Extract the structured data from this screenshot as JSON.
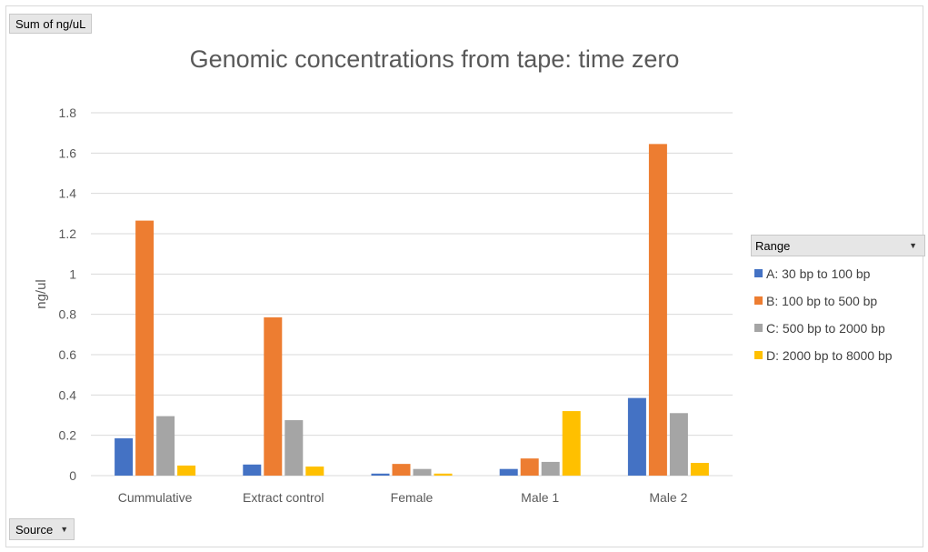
{
  "chart_data": {
    "type": "bar",
    "title": "Genomic concentrations from tape: time zero",
    "xlabel": "",
    "ylabel": "ng/ul",
    "ylim": [
      0,
      1.8
    ],
    "yticks": [
      "0",
      "0.2",
      "0.4",
      "0.6",
      "0.8",
      "1",
      "1.2",
      "1.4",
      "1.6",
      "1.8"
    ],
    "grid": true,
    "legend_position": "right",
    "categories": [
      "Cummulative",
      "Extract control",
      "Female",
      "Male 1",
      "Male 2"
    ],
    "series": [
      {
        "name": "A: 30 bp to 100 bp",
        "color": "#4472c4",
        "values": [
          0.185,
          0.055,
          0.01,
          0.033,
          0.385
        ]
      },
      {
        "name": "B: 100 bp to 500 bp",
        "color": "#ed7d31",
        "values": [
          1.265,
          0.785,
          0.058,
          0.085,
          1.645
        ]
      },
      {
        "name": "C: 500 bp to 2000 bp",
        "color": "#a5a5a5",
        "values": [
          0.295,
          0.275,
          0.033,
          0.068,
          0.31
        ]
      },
      {
        "name": "D: 2000 bp to 8000 bp",
        "color": "#ffc000",
        "values": [
          0.05,
          0.045,
          0.01,
          0.32,
          0.063
        ]
      }
    ]
  },
  "pivot": {
    "values_field": "Sum of ng/uL",
    "axis_field": "Source",
    "legend_field": "Range",
    "dropdown_icon": "chevron-down-icon"
  }
}
